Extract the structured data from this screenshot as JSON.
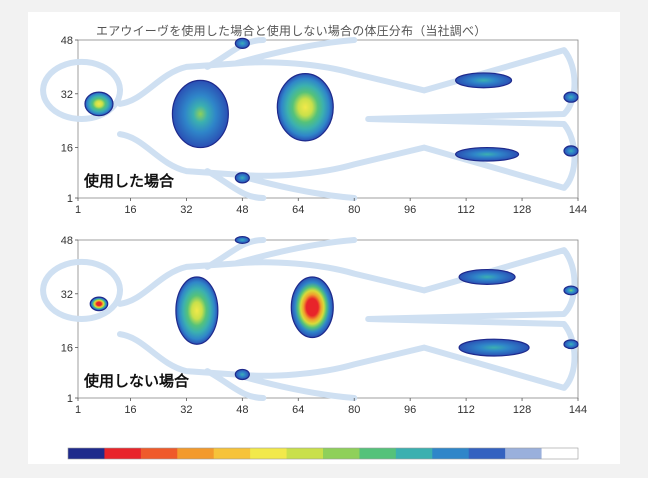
{
  "title": "エアウイーヴを使用した場合と使用しない場合の体圧分布（当社調べ）",
  "chart_data": [
    {
      "type": "heatmap",
      "label": "使用した場合",
      "xlim": [
        1,
        144
      ],
      "ylim": [
        1,
        48
      ],
      "x_ticks": [
        1,
        16,
        32,
        48,
        64,
        80,
        96,
        112,
        128,
        144
      ],
      "y_ticks": [
        48,
        32,
        16,
        1
      ],
      "pressure_regions": [
        {
          "region": "head",
          "x": 7,
          "y": 29,
          "rx": 4,
          "ry": 3.5,
          "peak": 0.85
        },
        {
          "region": "shoulders",
          "x": 36,
          "y": 26,
          "rx": 8,
          "ry": 10,
          "peak": 0.55
        },
        {
          "region": "hips",
          "x": 66,
          "y": 28,
          "rx": 8,
          "ry": 10,
          "peak": 0.7
        },
        {
          "region": "upper-arm-top",
          "x": 48,
          "y": 47,
          "rx": 2,
          "ry": 1.5,
          "peak": 0.4
        },
        {
          "region": "upper-arm-bottom",
          "x": 48,
          "y": 7,
          "rx": 2,
          "ry": 1.5,
          "peak": 0.4
        },
        {
          "region": "calf-top",
          "x": 117,
          "y": 36,
          "rx": 8,
          "ry": 2.2,
          "peak": 0.35
        },
        {
          "region": "calf-bottom",
          "x": 118,
          "y": 14,
          "rx": 9,
          "ry": 2,
          "peak": 0.35
        },
        {
          "region": "heel-top",
          "x": 142,
          "y": 31,
          "rx": 2,
          "ry": 1.5,
          "peak": 0.35
        },
        {
          "region": "heel-bottom",
          "x": 142,
          "y": 15,
          "rx": 2,
          "ry": 1.5,
          "peak": 0.35
        }
      ]
    },
    {
      "type": "heatmap",
      "label": "使用しない場合",
      "xlim": [
        1,
        144
      ],
      "ylim": [
        1,
        48
      ],
      "x_ticks": [
        1,
        16,
        32,
        48,
        64,
        80,
        96,
        112,
        128,
        144
      ],
      "y_ticks": [
        48,
        32,
        16,
        1
      ],
      "pressure_regions": [
        {
          "region": "head",
          "x": 7,
          "y": 29,
          "rx": 2.5,
          "ry": 2,
          "peak": 1.0
        },
        {
          "region": "shoulders",
          "x": 35,
          "y": 27,
          "rx": 6,
          "ry": 10,
          "peak": 0.75
        },
        {
          "region": "hips",
          "x": 68,
          "y": 28,
          "rx": 6,
          "ry": 9,
          "peak": 1.0
        },
        {
          "region": "upper-arm-top",
          "x": 48,
          "y": 48,
          "rx": 2,
          "ry": 1,
          "peak": 0.4
        },
        {
          "region": "upper-arm-bottom",
          "x": 48,
          "y": 8,
          "rx": 2,
          "ry": 1.5,
          "peak": 0.4
        },
        {
          "region": "calf-top",
          "x": 118,
          "y": 37,
          "rx": 8,
          "ry": 2.2,
          "peak": 0.45
        },
        {
          "region": "calf-bottom",
          "x": 120,
          "y": 16,
          "rx": 10,
          "ry": 2.5,
          "peak": 0.45
        },
        {
          "region": "heel-top",
          "x": 142,
          "y": 33,
          "rx": 2,
          "ry": 1.3,
          "peak": 0.5
        },
        {
          "region": "heel-bottom",
          "x": 142,
          "y": 17,
          "rx": 2,
          "ry": 1.3,
          "peak": 0.45
        }
      ]
    }
  ],
  "color_scale": [
    "#1e2a8c",
    "#e8242a",
    "#ef5a2a",
    "#f39a2c",
    "#f6c33a",
    "#f2e94a",
    "#c9e04a",
    "#8fd05a",
    "#55c27a",
    "#3bb0b0",
    "#2f86c9",
    "#3462c0",
    "#9ab0dc",
    "#ffffff"
  ]
}
